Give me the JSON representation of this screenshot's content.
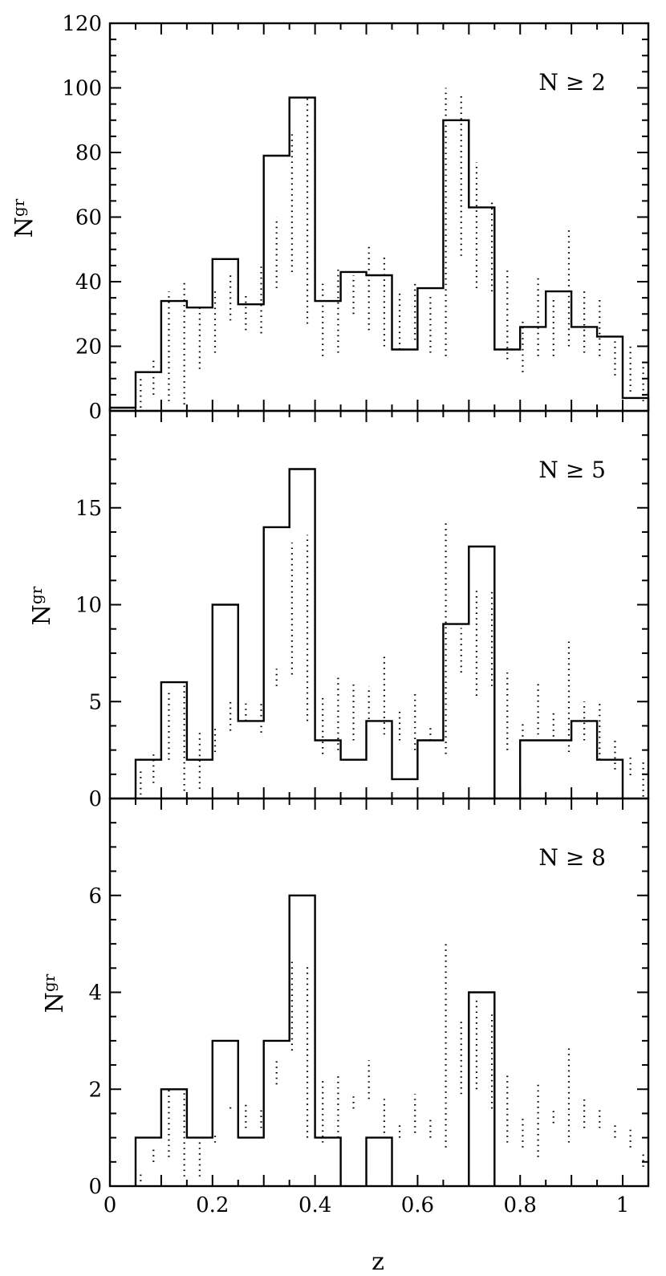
{
  "figure": {
    "xlabel": "z"
  },
  "chart_data": [
    {
      "type": "histogram",
      "panel": "top",
      "annotation": "N ≥ 2",
      "ylabel_main": "N",
      "ylabel_sub": "gr",
      "xlim": [
        0,
        1.05
      ],
      "ylim": [
        0,
        120
      ],
      "yticks": [
        0,
        20,
        40,
        60,
        80,
        100,
        120
      ],
      "bin_edges": [
        0,
        0.05,
        0.1,
        0.15,
        0.2,
        0.25,
        0.3,
        0.35,
        0.4,
        0.45,
        0.5,
        0.55,
        0.6,
        0.65,
        0.7,
        0.75,
        0.8,
        0.85,
        0.9,
        0.95,
        1.0,
        1.05
      ],
      "series": [
        {
          "style": "solid",
          "values": [
            1,
            12,
            34,
            32,
            47,
            33,
            79,
            97,
            34,
            43,
            42,
            19,
            38,
            90,
            63,
            19,
            26,
            37,
            26,
            23,
            4
          ]
        },
        {
          "style": "dotted",
          "bands": [
            [
              0.05,
              0.07,
              1,
              10
            ],
            [
              0.07,
              0.1,
              5,
              16
            ],
            [
              0.1,
              0.13,
              3,
              37
            ],
            [
              0.13,
              0.16,
              2,
              40
            ],
            [
              0.16,
              0.19,
              13,
              32
            ],
            [
              0.19,
              0.22,
              18,
              38
            ],
            [
              0.22,
              0.25,
              28,
              43
            ],
            [
              0.25,
              0.28,
              25,
              36
            ],
            [
              0.28,
              0.31,
              24,
              45
            ],
            [
              0.31,
              0.34,
              38,
              60
            ],
            [
              0.34,
              0.37,
              43,
              86
            ],
            [
              0.37,
              0.4,
              27,
              97
            ],
            [
              0.4,
              0.43,
              17,
              40
            ],
            [
              0.43,
              0.46,
              18,
              44
            ],
            [
              0.46,
              0.49,
              30,
              42
            ],
            [
              0.49,
              0.52,
              25,
              52
            ],
            [
              0.52,
              0.55,
              20,
              48
            ],
            [
              0.55,
              0.58,
              19,
              37
            ],
            [
              0.58,
              0.61,
              22,
              40
            ],
            [
              0.61,
              0.64,
              18,
              36
            ],
            [
              0.64,
              0.67,
              17,
              100
            ],
            [
              0.67,
              0.7,
              48,
              98
            ],
            [
              0.7,
              0.73,
              38,
              77
            ],
            [
              0.73,
              0.76,
              37,
              65
            ],
            [
              0.76,
              0.79,
              16,
              44
            ],
            [
              0.79,
              0.82,
              12,
              28
            ],
            [
              0.82,
              0.85,
              17,
              42
            ],
            [
              0.85,
              0.88,
              17,
              35
            ],
            [
              0.88,
              0.91,
              20,
              57
            ],
            [
              0.91,
              0.94,
              18,
              37
            ],
            [
              0.94,
              0.97,
              17,
              35
            ],
            [
              0.97,
              1.0,
              11,
              22
            ],
            [
              1.0,
              1.03,
              6,
              20
            ],
            [
              1.03,
              1.05,
              3,
              16
            ]
          ]
        }
      ]
    },
    {
      "type": "histogram",
      "panel": "middle",
      "annotation": "N ≥ 5",
      "ylabel_main": "N",
      "ylabel_sub": "gr",
      "xlim": [
        0,
        1.05
      ],
      "ylim": [
        0,
        20
      ],
      "yticks": [
        0,
        5,
        10,
        15
      ],
      "bin_edges": [
        0,
        0.05,
        0.1,
        0.15,
        0.2,
        0.25,
        0.3,
        0.35,
        0.4,
        0.45,
        0.5,
        0.55,
        0.6,
        0.65,
        0.7,
        0.75,
        0.8,
        0.85,
        0.9,
        0.95,
        1.0,
        1.05
      ],
      "series": [
        {
          "style": "solid",
          "values": [
            0,
            2,
            6,
            2,
            10,
            4,
            14,
            17,
            3,
            2,
            4,
            1,
            3,
            9,
            13,
            0,
            3,
            3,
            4,
            2,
            0
          ]
        },
        {
          "style": "dotted",
          "bands": [
            [
              0.05,
              0.07,
              0.2,
              1.5
            ],
            [
              0.07,
              0.1,
              0.8,
              2.3
            ],
            [
              0.1,
              0.13,
              2.0,
              5.5
            ],
            [
              0.13,
              0.16,
              0.4,
              6.0
            ],
            [
              0.16,
              0.19,
              0.5,
              3.5
            ],
            [
              0.19,
              0.22,
              2.4,
              3.6
            ],
            [
              0.22,
              0.25,
              3.5,
              5.0
            ],
            [
              0.25,
              0.28,
              4.0,
              4.9
            ],
            [
              0.28,
              0.31,
              3.4,
              5.0
            ],
            [
              0.31,
              0.34,
              5.8,
              6.7
            ],
            [
              0.34,
              0.37,
              6.4,
              13.2
            ],
            [
              0.37,
              0.4,
              4.0,
              13.6
            ],
            [
              0.4,
              0.43,
              2.3,
              5.2
            ],
            [
              0.43,
              0.46,
              2.5,
              6.3
            ],
            [
              0.46,
              0.49,
              3.0,
              6.0
            ],
            [
              0.49,
              0.52,
              4.1,
              5.8
            ],
            [
              0.52,
              0.55,
              3.3,
              7.5
            ],
            [
              0.55,
              0.58,
              3.0,
              4.5
            ],
            [
              0.58,
              0.61,
              2.5,
              5.5
            ],
            [
              0.61,
              0.64,
              3.0,
              3.8
            ],
            [
              0.64,
              0.67,
              2.3,
              14.4
            ],
            [
              0.67,
              0.7,
              6.5,
              8.8
            ],
            [
              0.7,
              0.73,
              5.3,
              10.9
            ],
            [
              0.73,
              0.76,
              5.8,
              10.8
            ],
            [
              0.76,
              0.79,
              2.5,
              6.5
            ],
            [
              0.79,
              0.82,
              3.2,
              4.0
            ],
            [
              0.82,
              0.85,
              3.3,
              6.0
            ],
            [
              0.85,
              0.88,
              3.2,
              4.5
            ],
            [
              0.88,
              0.91,
              2.4,
              8.3
            ],
            [
              0.91,
              0.94,
              3.0,
              5.0
            ],
            [
              0.94,
              0.97,
              2.0,
              4.9
            ],
            [
              0.97,
              1.0,
              1.5,
              3.0
            ],
            [
              1.0,
              1.03,
              1.2,
              2.2
            ],
            [
              1.03,
              1.05,
              0.1,
              2.0
            ]
          ]
        }
      ]
    },
    {
      "type": "histogram",
      "panel": "bottom",
      "annotation": "N ≥ 8",
      "ylabel_main": "N",
      "ylabel_sub": "gr",
      "xlim": [
        0,
        1.05
      ],
      "ylim": [
        0,
        8
      ],
      "yticks": [
        0,
        2,
        4,
        6
      ],
      "xticks": [
        0,
        0.2,
        0.4,
        0.6,
        0.8,
        1
      ],
      "bin_edges": [
        0,
        0.05,
        0.1,
        0.15,
        0.2,
        0.25,
        0.3,
        0.35,
        0.4,
        0.45,
        0.5,
        0.55,
        0.6,
        0.65,
        0.7,
        0.75,
        0.8,
        0.85,
        0.9,
        0.95,
        1.0,
        1.05
      ],
      "series": [
        {
          "style": "solid",
          "values": [
            0,
            1,
            2,
            1,
            3,
            1,
            3,
            6,
            1,
            0,
            1,
            0,
            0,
            0,
            4,
            0,
            0,
            0,
            0,
            0,
            0
          ]
        },
        {
          "style": "dotted",
          "bands": [
            [
              0.05,
              0.07,
              0.1,
              0.3
            ],
            [
              0.07,
              0.1,
              0.5,
              0.8
            ],
            [
              0.1,
              0.13,
              0.6,
              2.0
            ],
            [
              0.13,
              0.16,
              0.2,
              2.0
            ],
            [
              0.16,
              0.19,
              0.2,
              1.1
            ],
            [
              0.19,
              0.22,
              0.9,
              1.1
            ],
            [
              0.22,
              0.25,
              1.6,
              1.7
            ],
            [
              0.25,
              0.28,
              1.2,
              1.7
            ],
            [
              0.28,
              0.31,
              1.2,
              1.6
            ],
            [
              0.31,
              0.34,
              2.1,
              2.6
            ],
            [
              0.34,
              0.37,
              2.8,
              4.7
            ],
            [
              0.37,
              0.4,
              1.0,
              4.6
            ],
            [
              0.4,
              0.43,
              0.9,
              2.2
            ],
            [
              0.43,
              0.46,
              1.0,
              2.3
            ],
            [
              0.46,
              0.49,
              1.6,
              1.9
            ],
            [
              0.49,
              0.52,
              1.8,
              2.6
            ],
            [
              0.52,
              0.55,
              1.1,
              1.8
            ],
            [
              0.55,
              0.58,
              1.0,
              1.3
            ],
            [
              0.58,
              0.61,
              1.1,
              1.9
            ],
            [
              0.61,
              0.64,
              1.0,
              1.4
            ],
            [
              0.64,
              0.67,
              0.8,
              5.0
            ],
            [
              0.67,
              0.7,
              1.9,
              3.4
            ],
            [
              0.7,
              0.73,
              2.0,
              3.9
            ],
            [
              0.73,
              0.76,
              1.6,
              3.6
            ],
            [
              0.76,
              0.79,
              0.9,
              2.3
            ],
            [
              0.79,
              0.82,
              0.8,
              1.4
            ],
            [
              0.82,
              0.85,
              0.6,
              2.1
            ],
            [
              0.85,
              0.88,
              1.3,
              1.6
            ],
            [
              0.88,
              0.91,
              0.9,
              2.9
            ],
            [
              0.91,
              0.94,
              1.2,
              1.8
            ],
            [
              0.94,
              0.97,
              1.2,
              1.6
            ],
            [
              0.97,
              1.0,
              1.0,
              1.3
            ],
            [
              1.0,
              1.03,
              0.8,
              1.2
            ],
            [
              1.03,
              1.05,
              0.4,
              0.7
            ]
          ]
        }
      ]
    }
  ]
}
